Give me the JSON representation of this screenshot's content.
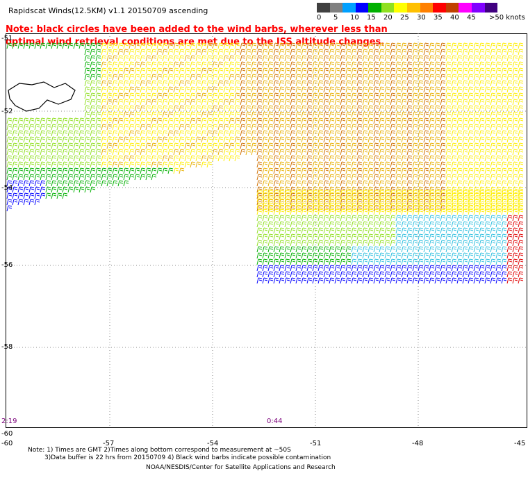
{
  "header": {
    "title": "Rapidscat Winds(12.5KM) v1.1 20150709 ascending",
    "note": "Note: black circles have been added to the wind barbs, wherever less than optimal wind retrieval conditions are met due to the ISS altitude changes."
  },
  "color_scale": {
    "labels": [
      "0",
      "5",
      "10",
      "15",
      "20",
      "25",
      "30",
      "35",
      "40",
      "45",
      ">50 knots"
    ],
    "colors": [
      "#404040",
      "#808080",
      "#00a0ff",
      "#0000ff",
      "#00b000",
      "#90e020",
      "#ffff00",
      "#ffc000",
      "#ff8000",
      "#ff0000",
      "#c04000",
      "#ff00ff",
      "#8000ff",
      "#400080"
    ]
  },
  "map": {
    "lat_labels": [
      "-51",
      "-52",
      "-54",
      "-56",
      "-58",
      "-60"
    ],
    "lon_labels": [
      "-60",
      "-57",
      "-54",
      "-51",
      "-48",
      "-45"
    ],
    "time_labels": [
      "2:19",
      "0:44"
    ]
  },
  "footer": {
    "line1": "Note: 1) Times are GMT 2)Times along bottom correspond to measurement at ~50S",
    "line2": "3)Data buffer is 22 hrs from 20150709 4) Black wind barbs indicate possible contamination",
    "credit": "NOAA/NESDIS/Center for Satellite Applications and Research"
  }
}
